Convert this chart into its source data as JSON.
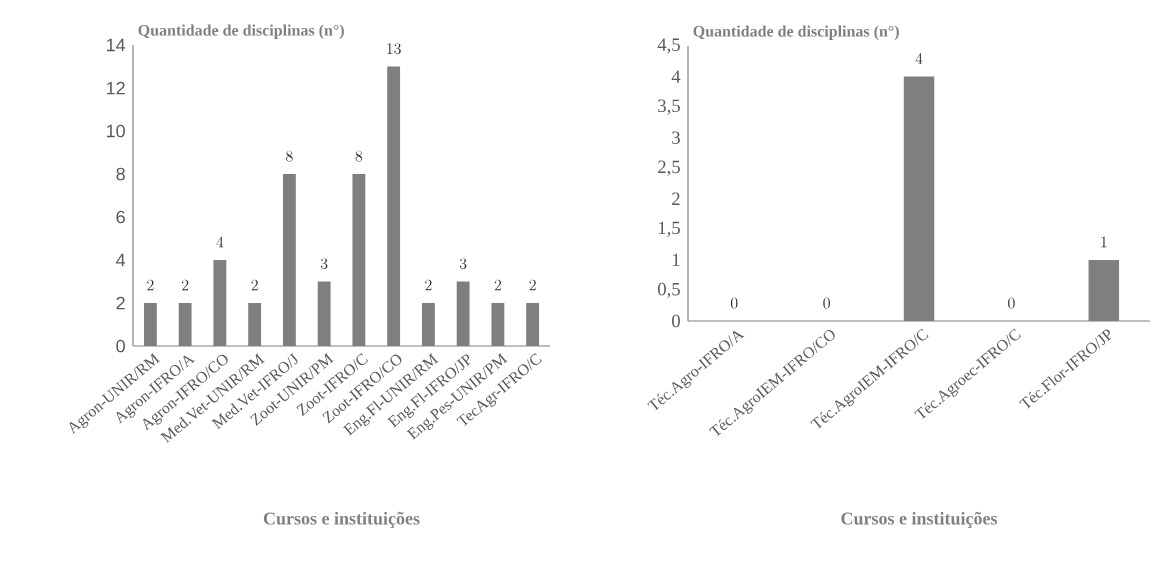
{
  "chart_data": [
    {
      "type": "bar",
      "ylabel": "Quantidade de disciplinas (n°)",
      "xlabel": "Cursos e instituições",
      "categories": [
        "Agron-UNIR/RM",
        "Agron-IFRO/A",
        "Agron-IFRO/CO",
        "Med.Vet-UNIR/RM",
        "Med.Vet-IFRO/J",
        "Zoot-UNIR/PM",
        "Zoot-IFRO/C",
        "Zoot-IFRO/CO",
        "Eng.Fl-UNIR/RM",
        "Eng.Fl-IFRO/JP",
        "Eng.Pes-UNIR/PM",
        "TecAgr-IFRO/C"
      ],
      "values": [
        2,
        2,
        4,
        2,
        8,
        3,
        8,
        13,
        2,
        3,
        2,
        2
      ],
      "color": "#7f7f7f",
      "data_labels": true,
      "ylim": [
        0,
        14
      ],
      "yticks": [
        0,
        2,
        4,
        6,
        8,
        10,
        12,
        14
      ]
    },
    {
      "type": "bar",
      "ylabel": "Quantidade de disciplinas (n°)",
      "xlabel": "Cursos e instituições",
      "categories": [
        "Téc.Agro-IFRO/A",
        "Téc.AgroIEM-IFRO/CO",
        "Téc.AgroIEM-IFRO/C",
        "Téc.Agroec-IFRO/C",
        "Téc.Flor-IFRO/JP"
      ],
      "values": [
        0,
        0,
        4,
        0,
        1
      ],
      "color": "#7f7f7f",
      "data_labels": true,
      "ylim": [
        0,
        4.5
      ],
      "yticks": [
        0,
        {
          "value": 0.5,
          "label": "0,5"
        },
        1,
        {
          "value": 1.5,
          "label": "1,5"
        },
        2,
        {
          "value": 2.5,
          "label": "2,5"
        },
        3,
        {
          "value": 3.5,
          "label": "3,5"
        },
        4,
        {
          "value": 4.5,
          "label": "4,5"
        }
      ]
    }
  ]
}
